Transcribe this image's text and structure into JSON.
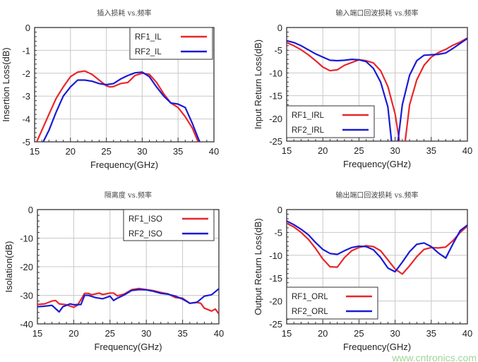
{
  "colors": {
    "rf1": "#e8262a",
    "rf2": "#1a1ad6",
    "grid": "#c8c8c8",
    "axis": "#333333"
  },
  "watermark": "www.cntronics.com",
  "chart_data": [
    {
      "type": "line",
      "title": "插入损耗 vs.频率",
      "xlabel": "Frequency(GHz)",
      "ylabel": "Insertion Loss(dB)",
      "xlim": [
        15,
        40
      ],
      "ylim": [
        -5,
        0
      ],
      "xticks": [
        15,
        20,
        25,
        30,
        35,
        40
      ],
      "yticks": [
        0,
        -1,
        -2,
        -3,
        -4,
        -5
      ],
      "grid": true,
      "legend": "top-right",
      "series": [
        {
          "name": "RF1_IL",
          "color": "rf1",
          "points": [
            [
              15.3,
              -5
            ],
            [
              16,
              -4.5
            ],
            [
              17,
              -3.8
            ],
            [
              18,
              -3.1
            ],
            [
              19,
              -2.6
            ],
            [
              20,
              -2.15
            ],
            [
              21,
              -1.95
            ],
            [
              22,
              -1.9
            ],
            [
              23,
              -2.05
            ],
            [
              24,
              -2.3
            ],
            [
              25,
              -2.55
            ],
            [
              25.5,
              -2.6
            ],
            [
              26,
              -2.58
            ],
            [
              27,
              -2.45
            ],
            [
              28,
              -2.4
            ],
            [
              29,
              -2.1
            ],
            [
              30,
              -2.0
            ],
            [
              31,
              -2.05
            ],
            [
              32,
              -2.4
            ],
            [
              33,
              -2.9
            ],
            [
              34,
              -3.3
            ],
            [
              35,
              -3.5
            ],
            [
              36,
              -3.9
            ],
            [
              37,
              -4.4
            ],
            [
              37.8,
              -5
            ]
          ]
        },
        {
          "name": "RF2_IL",
          "color": "rf2",
          "points": [
            [
              16.2,
              -5
            ],
            [
              17,
              -4.5
            ],
            [
              18,
              -3.7
            ],
            [
              19,
              -3.0
            ],
            [
              20,
              -2.6
            ],
            [
              21,
              -2.3
            ],
            [
              22,
              -2.3
            ],
            [
              23,
              -2.35
            ],
            [
              24,
              -2.45
            ],
            [
              25,
              -2.5
            ],
            [
              26,
              -2.45
            ],
            [
              27,
              -2.25
            ],
            [
              28,
              -2.1
            ],
            [
              29,
              -1.98
            ],
            [
              30,
              -1.95
            ],
            [
              31,
              -2.15
            ],
            [
              32,
              -2.6
            ],
            [
              33,
              -3.0
            ],
            [
              34,
              -3.3
            ],
            [
              35,
              -3.35
            ],
            [
              36,
              -3.5
            ],
            [
              37,
              -4.2
            ],
            [
              38,
              -5
            ]
          ]
        }
      ]
    },
    {
      "type": "line",
      "title": "输入端口回波损耗 vs.频率",
      "xlabel": "Frequency(GHz)",
      "ylabel": "Input Return Loss(dB)",
      "xlim": [
        15,
        40
      ],
      "ylim": [
        -25,
        0
      ],
      "xticks": [
        15,
        20,
        25,
        30,
        35,
        40
      ],
      "yticks": [
        0,
        -5,
        -10,
        -15,
        -20,
        -25
      ],
      "grid": true,
      "legend": "bottom-left",
      "series": [
        {
          "name": "RF1_IRL",
          "color": "rf1",
          "points": [
            [
              15,
              -3.3
            ],
            [
              16,
              -4
            ],
            [
              17,
              -4.9
            ],
            [
              18,
              -6
            ],
            [
              19,
              -7.3
            ],
            [
              20,
              -8.7
            ],
            [
              21,
              -9.5
            ],
            [
              22,
              -9.3
            ],
            [
              23,
              -8.3
            ],
            [
              24,
              -7.7
            ],
            [
              25,
              -7.1
            ],
            [
              26,
              -7.3
            ],
            [
              27,
              -7.8
            ],
            [
              28,
              -9.5
            ],
            [
              29,
              -13
            ],
            [
              30,
              -19
            ],
            [
              30.6,
              -25
            ],
            null,
            [
              31.4,
              -25
            ],
            [
              32,
              -17
            ],
            [
              33,
              -11.5
            ],
            [
              34,
              -8.3
            ],
            [
              35,
              -6.5
            ],
            [
              36,
              -5.5
            ],
            [
              37,
              -4.8
            ],
            [
              38,
              -3.9
            ],
            [
              39,
              -3.2
            ],
            [
              40,
              -2.3
            ]
          ]
        },
        {
          "name": "RF2_IRL",
          "color": "rf2",
          "points": [
            [
              15,
              -2.9
            ],
            [
              16,
              -3.3
            ],
            [
              17,
              -4
            ],
            [
              18,
              -4.9
            ],
            [
              19,
              -5.8
            ],
            [
              20,
              -6.5
            ],
            [
              21,
              -7.2
            ],
            [
              22,
              -7.3
            ],
            [
              23,
              -7.2
            ],
            [
              24,
              -7
            ],
            [
              25,
              -7.1
            ],
            [
              26,
              -7.5
            ],
            [
              27,
              -9
            ],
            [
              28,
              -12
            ],
            [
              29,
              -17.5
            ],
            [
              29.5,
              -25
            ],
            null,
            [
              30.4,
              -25
            ],
            [
              31,
              -17
            ],
            [
              32,
              -10.5
            ],
            [
              33,
              -7.3
            ],
            [
              34,
              -6.1
            ],
            [
              35,
              -6
            ],
            [
              36,
              -5.9
            ],
            [
              37,
              -5.6
            ],
            [
              38,
              -4.6
            ],
            [
              39,
              -3.5
            ],
            [
              40,
              -2.4
            ]
          ]
        }
      ]
    },
    {
      "type": "line",
      "title": "隔离度 vs.频率",
      "xlabel": "Frequency(GHz)",
      "ylabel": "Isolation(dB)",
      "xlim": [
        15,
        40
      ],
      "ylim": [
        -40,
        0
      ],
      "xticks": [
        15,
        20,
        25,
        30,
        35,
        40
      ],
      "yticks": [
        0,
        -10,
        -20,
        -30,
        -40
      ],
      "grid": true,
      "legend": "top-right",
      "series": [
        {
          "name": "RF1_ISO",
          "color": "rf1",
          "points": [
            [
              15,
              -33.2
            ],
            [
              16,
              -33
            ],
            [
              17,
              -32
            ],
            [
              17.5,
              -31.8
            ],
            [
              18,
              -33
            ],
            [
              19,
              -33.3
            ],
            [
              20,
              -34.2
            ],
            [
              20.5,
              -33.5
            ],
            [
              21,
              -31.5
            ],
            [
              21.5,
              -29.3
            ],
            [
              22,
              -29.3
            ],
            [
              22.5,
              -29.8
            ],
            [
              23.5,
              -29.2
            ],
            [
              24,
              -29.7
            ],
            [
              25,
              -29.2
            ],
            [
              25.5,
              -29.2
            ],
            [
              26,
              -30.2
            ],
            [
              27,
              -29.5
            ],
            [
              28,
              -28
            ],
            [
              29,
              -27.6
            ],
            [
              30,
              -28
            ],
            [
              31,
              -28.4
            ],
            [
              32,
              -29
            ],
            [
              33,
              -29.5
            ],
            [
              34,
              -30.8
            ],
            [
              35,
              -31
            ],
            [
              36,
              -32.8
            ],
            [
              37,
              -32.5
            ],
            [
              37.5,
              -32.8
            ],
            [
              38,
              -34.5
            ],
            [
              39,
              -35.5
            ],
            [
              39.5,
              -34.8
            ],
            [
              40,
              -36.5
            ]
          ]
        },
        {
          "name": "RF2_ISO",
          "color": "rf2",
          "points": [
            [
              15,
              -34
            ],
            [
              16,
              -33.8
            ],
            [
              17,
              -33.5
            ],
            [
              18,
              -35.8
            ],
            [
              18.5,
              -34
            ],
            [
              19.5,
              -33
            ],
            [
              20,
              -33.3
            ],
            [
              21,
              -33.2
            ],
            [
              21.5,
              -30
            ],
            [
              22,
              -30
            ],
            [
              23,
              -30.8
            ],
            [
              24,
              -31.2
            ],
            [
              25,
              -30.3
            ],
            [
              25.5,
              -31.8
            ],
            [
              26,
              -31
            ],
            [
              27,
              -29.8
            ],
            [
              28,
              -28.3
            ],
            [
              29,
              -28
            ],
            [
              30,
              -28.1
            ],
            [
              31,
              -28.6
            ],
            [
              32,
              -29.3
            ],
            [
              33,
              -29.6
            ],
            [
              34,
              -30.3
            ],
            [
              35,
              -31.3
            ],
            [
              36,
              -32.8
            ],
            [
              37,
              -32.4
            ],
            [
              38,
              -30.3
            ],
            [
              39,
              -29.8
            ],
            [
              40,
              -27.7
            ]
          ]
        }
      ]
    },
    {
      "type": "line",
      "title": "输出端口回波损耗 vs.频率",
      "xlabel": "Frequency(GHz)",
      "ylabel": "Output Return Loss(dB)",
      "xlim": [
        15,
        40
      ],
      "ylim": [
        -25,
        0
      ],
      "xticks": [
        15,
        20,
        25,
        30,
        35,
        40
      ],
      "yticks": [
        0,
        -5,
        -10,
        -15,
        -20,
        -25
      ],
      "grid": true,
      "legend": "bottom-left",
      "series": [
        {
          "name": "RF1_ORL",
          "color": "rf1",
          "points": [
            [
              15,
              -3
            ],
            [
              16,
              -3.8
            ],
            [
              17,
              -5
            ],
            [
              18,
              -6.5
            ],
            [
              19,
              -8.5
            ],
            [
              20,
              -10.8
            ],
            [
              21,
              -12.5
            ],
            [
              22,
              -12.6
            ],
            [
              23,
              -10.5
            ],
            [
              24,
              -9
            ],
            [
              25,
              -8.3
            ],
            [
              26,
              -7.9
            ],
            [
              27,
              -8.1
            ],
            [
              28,
              -9
            ],
            [
              29,
              -11
            ],
            [
              30,
              -13
            ],
            [
              31,
              -14.1
            ],
            [
              32,
              -12.3
            ],
            [
              33,
              -10.3
            ],
            [
              34,
              -8.7
            ],
            [
              35,
              -8.3
            ],
            [
              36,
              -8.4
            ],
            [
              37,
              -8.2
            ],
            [
              38,
              -6.8
            ],
            [
              39,
              -5
            ],
            [
              40,
              -3.6
            ]
          ]
        },
        {
          "name": "RF2_ORL",
          "color": "rf2",
          "points": [
            [
              15,
              -2.5
            ],
            [
              16,
              -3.3
            ],
            [
              17,
              -4.3
            ],
            [
              18,
              -5.5
            ],
            [
              19,
              -7.2
            ],
            [
              20,
              -8.7
            ],
            [
              21,
              -9.6
            ],
            [
              22,
              -9.8
            ],
            [
              23,
              -9
            ],
            [
              24,
              -8.3
            ],
            [
              25,
              -8
            ],
            [
              26,
              -8.1
            ],
            [
              27,
              -8.8
            ],
            [
              28,
              -10.5
            ],
            [
              29,
              -12.8
            ],
            [
              30,
              -13.6
            ],
            [
              31,
              -11.5
            ],
            [
              32,
              -9.2
            ],
            [
              33,
              -7.6
            ],
            [
              34,
              -7.3
            ],
            [
              35,
              -8.1
            ],
            [
              36,
              -9.5
            ],
            [
              37,
              -10.6
            ],
            [
              38,
              -7.5
            ],
            [
              39,
              -4.6
            ],
            [
              40,
              -3.4
            ]
          ]
        }
      ]
    }
  ]
}
